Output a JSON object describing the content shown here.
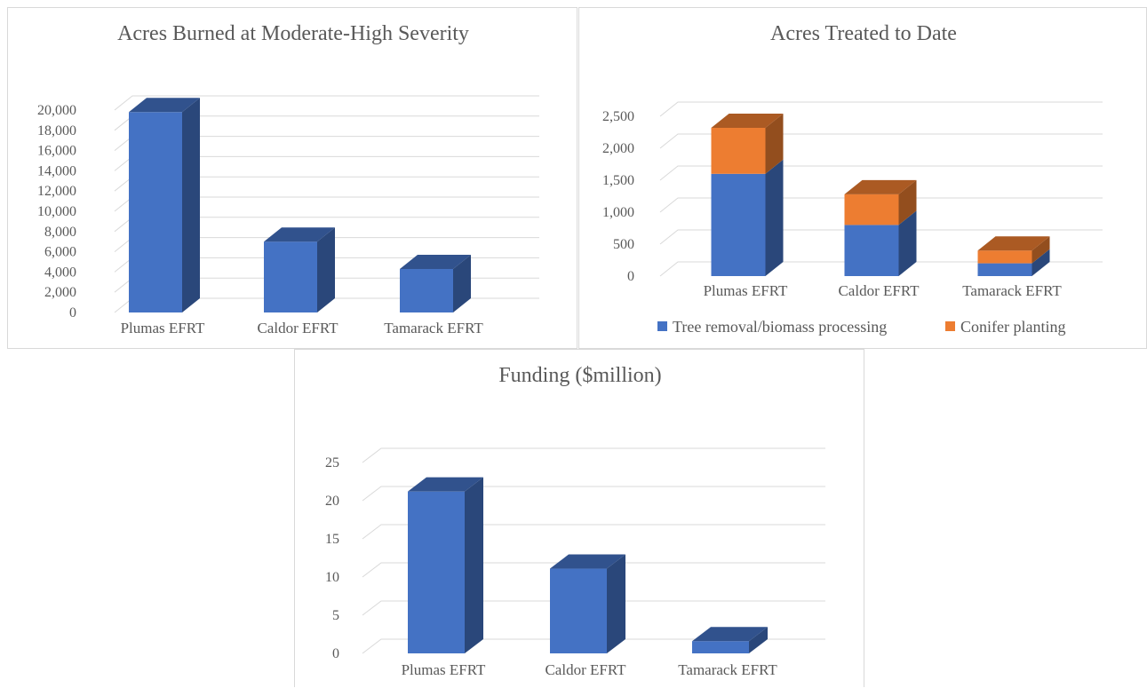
{
  "chart_data": [
    {
      "id": "burned",
      "type": "bar",
      "title": "Acres Burned at Moderate-High Severity",
      "categories": [
        "Plumas EFRT",
        "Caldor EFRT",
        "Tamarack EFRT"
      ],
      "series": [
        {
          "values": [
            19800,
            7000,
            4300
          ],
          "color": "#4472C4"
        }
      ],
      "ylim": [
        0,
        20000
      ],
      "yticks": [
        "0",
        "2,000",
        "4,000",
        "6,000",
        "8,000",
        "10,000",
        "12,000",
        "14,000",
        "16,000",
        "18,000",
        "20,000"
      ],
      "grid": true,
      "legend": "none"
    },
    {
      "id": "treated",
      "type": "bar",
      "stacked": true,
      "title": "Acres Treated to Date",
      "categories": [
        "Plumas EFRT",
        "Caldor EFRT",
        "Tamarack EFRT"
      ],
      "series": [
        {
          "name": "Tree removal/biomass processing",
          "values": [
            1600,
            800,
            200
          ],
          "color": "#4472C4"
        },
        {
          "name": "Conifer planting",
          "values": [
            720,
            480,
            200
          ],
          "color": "#ED7D31"
        }
      ],
      "ylim": [
        0,
        2500
      ],
      "yticks": [
        "0",
        "500",
        "1,000",
        "1,500",
        "2,000",
        "2,500"
      ],
      "grid": true,
      "legend": "bottom"
    },
    {
      "id": "funding",
      "type": "bar",
      "title": "Funding ($million)",
      "categories": [
        "Plumas EFRT",
        "Caldor EFRT",
        "Tamarack EFRT"
      ],
      "series": [
        {
          "values": [
            21.2,
            11.1,
            1.6
          ],
          "color": "#4472C4"
        }
      ],
      "ylim": [
        0,
        25
      ],
      "yticks": [
        "0",
        "5",
        "10",
        "15",
        "20",
        "25"
      ],
      "grid": true,
      "legend": "none"
    }
  ]
}
